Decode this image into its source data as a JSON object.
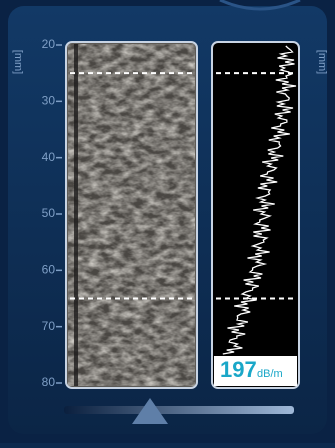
{
  "scale": {
    "left_unit": "[mm]",
    "right_unit": "[mm]",
    "ticks": [
      20,
      30,
      40,
      50,
      60,
      70,
      80
    ],
    "range": [
      20,
      80
    ]
  },
  "gate_depths": [
    25,
    65
  ],
  "readout": {
    "value": "197",
    "unit": "dB/m"
  }
}
